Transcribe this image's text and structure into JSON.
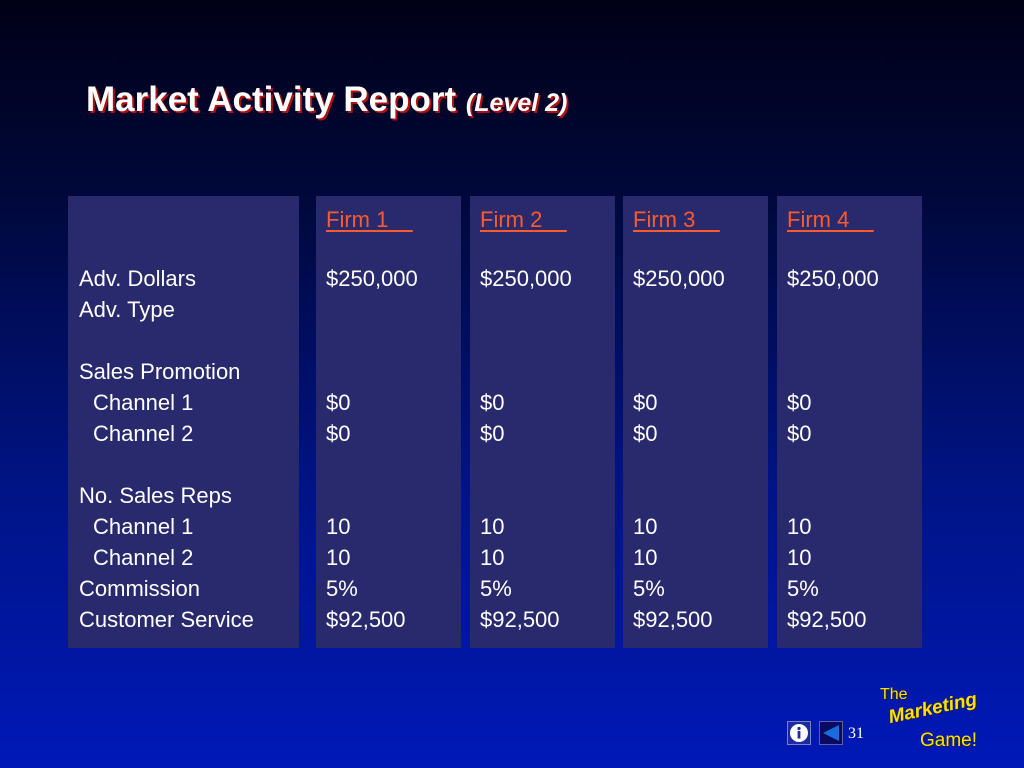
{
  "title": {
    "main": "Market Activity Report",
    "sub": "(Level 2)"
  },
  "labels": {
    "adv_dollars": "Adv. Dollars",
    "adv_type": "Adv. Type",
    "sales_promotion": "Sales Promotion",
    "sp_channel1": "Channel 1",
    "sp_channel2": "Channel 2",
    "no_sales_reps": "No. Sales Reps",
    "sr_channel1": "Channel 1",
    "sr_channel2": "Channel 2",
    "commission": "Commission",
    "customer_service": "Customer Service"
  },
  "firms": [
    {
      "name": "Firm 1    ",
      "adv_dollars": "$250,000",
      "sp_channel1": "$0",
      "sp_channel2": "$0",
      "sr_channel1": "10",
      "sr_channel2": "10",
      "commission": "5%",
      "customer_service": "$92,500"
    },
    {
      "name": "Firm 2    ",
      "adv_dollars": "$250,000",
      "sp_channel1": "$0",
      "sp_channel2": "$0",
      "sr_channel1": "10",
      "sr_channel2": "10",
      "commission": "5%",
      "customer_service": "$92,500"
    },
    {
      "name": "Firm 3    ",
      "adv_dollars": "$250,000",
      "sp_channel1": "$0",
      "sp_channel2": "$0",
      "sr_channel1": "10",
      "sr_channel2": "10",
      "commission": "5%",
      "customer_service": "$92,500"
    },
    {
      "name": "Firm 4    ",
      "adv_dollars": "$250,000",
      "sp_channel1": "$0",
      "sp_channel2": "$0",
      "sr_channel1": "10",
      "sr_channel2": "10",
      "commission": "5%",
      "customer_service": "$92,500"
    }
  ],
  "logo": {
    "the": "The",
    "marketing": "Marketing",
    "game": "Game!"
  },
  "nav": {
    "info_icon": "info-icon",
    "back_icon": "back-arrow-icon",
    "page_number": "31"
  },
  "colors": {
    "firm_header": "#ff5a2a",
    "panel": "#29296e",
    "logo": "#ffe000",
    "title_shadow": "#b01010"
  }
}
